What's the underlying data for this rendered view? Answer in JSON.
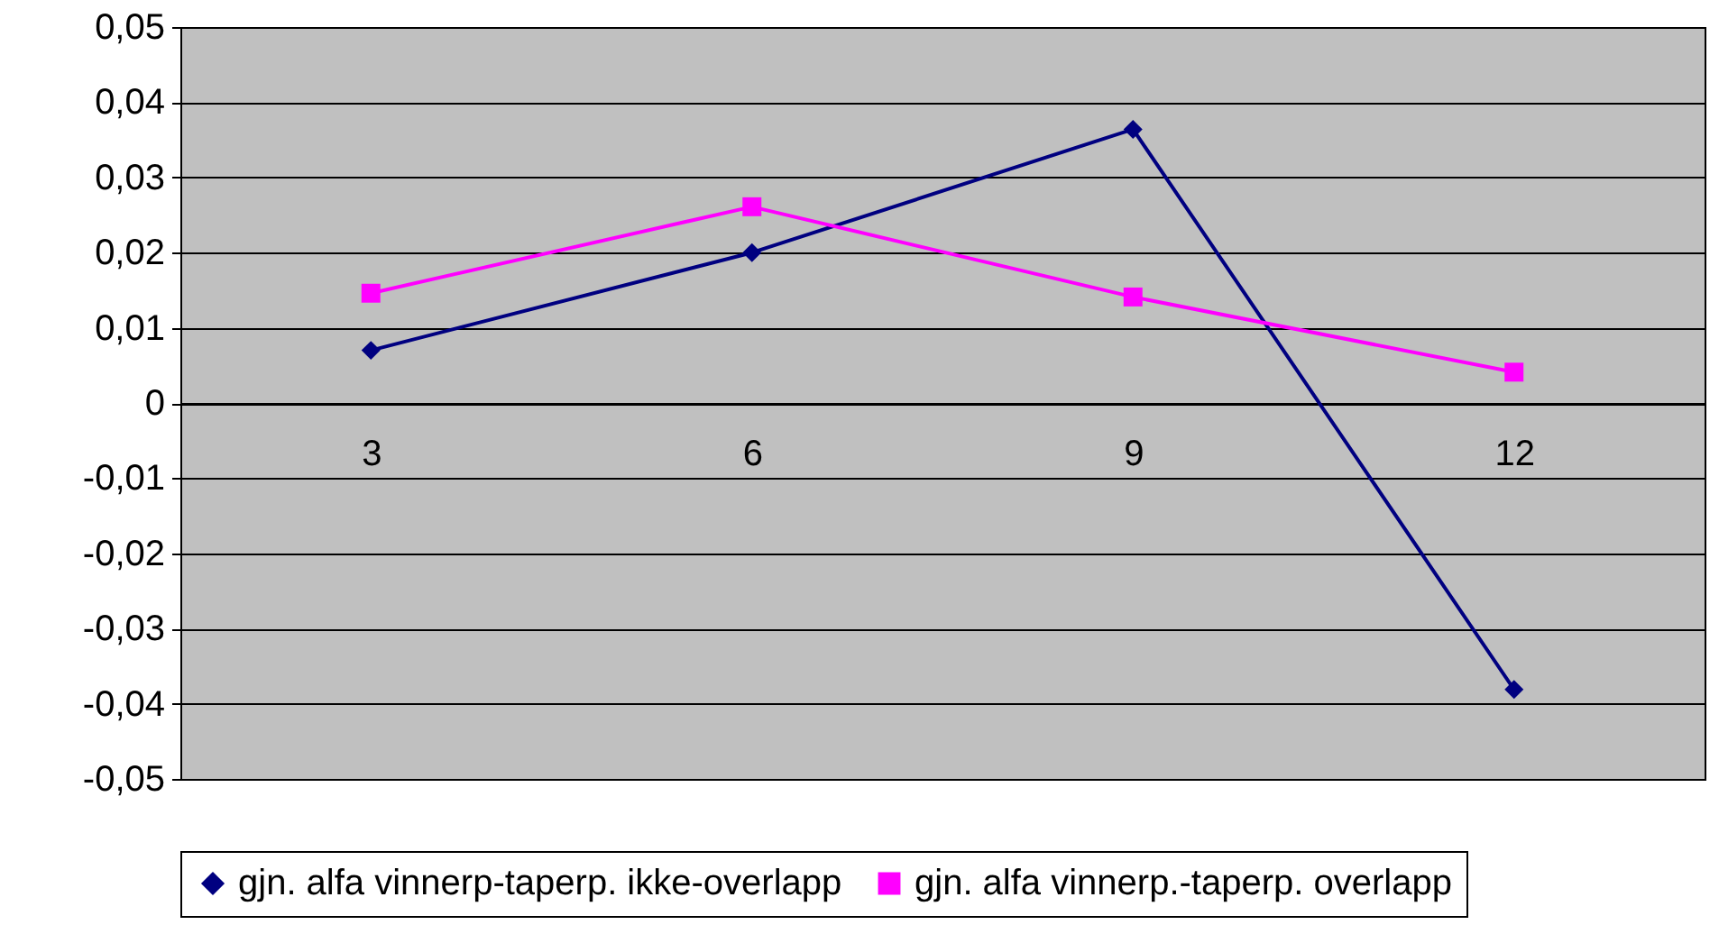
{
  "chart_data": {
    "type": "line",
    "categories": [
      "3",
      "6",
      "9",
      "12"
    ],
    "series": [
      {
        "name": "gjn. alfa vinnerp-taperp. ikke-overlapp",
        "color": "#000080",
        "marker": "diamond",
        "values": [
          0.007,
          0.02,
          0.0364,
          -0.0381
        ]
      },
      {
        "name": "gjn. alfa vinnerp.-taperp. overlapp",
        "color": "#ff00ff",
        "marker": "square",
        "values": [
          0.0146,
          0.0261,
          0.0141,
          0.0041
        ]
      }
    ],
    "ylim": [
      -0.05,
      0.05
    ],
    "yticks": [
      {
        "value": -0.05,
        "label": "-0,05"
      },
      {
        "value": -0.04,
        "label": "-0,04"
      },
      {
        "value": -0.03,
        "label": "-0,03"
      },
      {
        "value": -0.02,
        "label": "-0,02"
      },
      {
        "value": -0.01,
        "label": "-0,01"
      },
      0,
      {
        "value": 0.01,
        "label": "0,01"
      },
      {
        "value": 0.02,
        "label": "0,02"
      },
      {
        "value": 0.03,
        "label": "0,03"
      },
      {
        "value": 0.04,
        "label": "0,04"
      },
      {
        "value": 0.05,
        "label": "0,05"
      }
    ],
    "grid": "y",
    "legend": "bottom"
  }
}
